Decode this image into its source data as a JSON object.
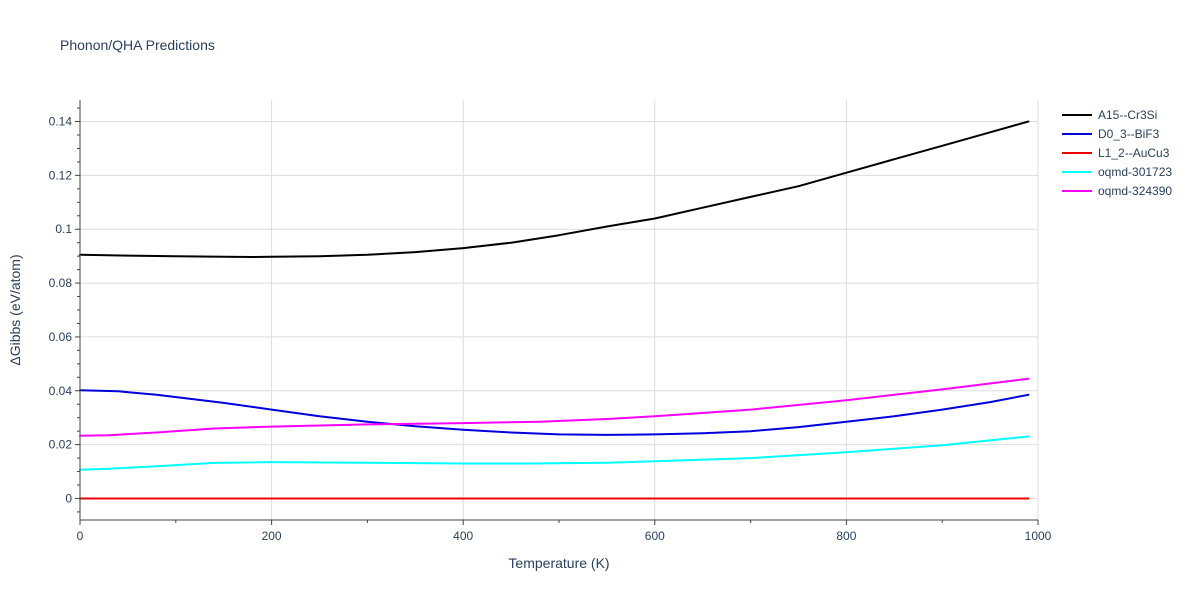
{
  "chart_data": {
    "type": "line",
    "title": "Phonon/QHA Predictions",
    "xlabel": "Temperature (K)",
    "ylabel": "ΔGibbs (eV/atom)",
    "xlim": [
      0,
      1000
    ],
    "ylim": [
      -0.008,
      0.148
    ],
    "xticks": [
      0,
      200,
      400,
      600,
      800,
      1000
    ],
    "xtick_labels": [
      "0",
      "200",
      "400",
      "600",
      "800",
      "1000"
    ],
    "yticks": [
      0,
      0.02,
      0.04,
      0.06,
      0.08,
      0.1,
      0.12,
      0.14
    ],
    "ytick_labels": [
      "0",
      "0.02",
      "0.04",
      "0.06",
      "0.08",
      "0.1",
      "0.12",
      "0.14"
    ],
    "grid": true,
    "legend_position": "top-right, outside plot",
    "series": [
      {
        "name": "A15--Cr3Si",
        "color": "#000000",
        "x": [
          0,
          50,
          100,
          150,
          180,
          200,
          250,
          300,
          350,
          400,
          450,
          500,
          550,
          600,
          650,
          700,
          750,
          800,
          850,
          900,
          950,
          990
        ],
        "y": [
          0.0905,
          0.0902,
          0.09,
          0.0898,
          0.0897,
          0.0898,
          0.09,
          0.0905,
          0.0915,
          0.093,
          0.095,
          0.0978,
          0.101,
          0.104,
          0.108,
          0.112,
          0.116,
          0.121,
          0.126,
          0.131,
          0.136,
          0.14
        ]
      },
      {
        "name": "D0_3--BiF3",
        "color": "#0000dd",
        "x": [
          0,
          40,
          80,
          150,
          200,
          250,
          300,
          350,
          400,
          450,
          500,
          550,
          600,
          650,
          700,
          750,
          800,
          850,
          900,
          950,
          990
        ],
        "y": [
          0.0402,
          0.0398,
          0.0385,
          0.0355,
          0.033,
          0.0305,
          0.0285,
          0.0268,
          0.0255,
          0.0245,
          0.0238,
          0.0236,
          0.0238,
          0.0242,
          0.025,
          0.0265,
          0.0285,
          0.0305,
          0.033,
          0.0358,
          0.0385
        ]
      },
      {
        "name": "L1_2--AuCu3",
        "color": "#ee0000",
        "x": [
          0,
          990
        ],
        "y": [
          0,
          0
        ]
      },
      {
        "name": "oqmd-301723",
        "color": "#00ffff",
        "x": [
          0,
          30,
          80,
          140,
          200,
          300,
          400,
          470,
          550,
          600,
          700,
          800,
          900,
          990
        ],
        "y": [
          0.0107,
          0.011,
          0.012,
          0.0132,
          0.0135,
          0.0133,
          0.013,
          0.013,
          0.0133,
          0.0138,
          0.015,
          0.0172,
          0.0198,
          0.023
        ]
      },
      {
        "name": "oqmd-324390",
        "color": "#ff00ff",
        "x": [
          0,
          30,
          80,
          140,
          200,
          300,
          400,
          480,
          550,
          600,
          700,
          800,
          900,
          990
        ],
        "y": [
          0.0233,
          0.0235,
          0.0245,
          0.026,
          0.0267,
          0.0275,
          0.028,
          0.0285,
          0.0295,
          0.0305,
          0.033,
          0.0365,
          0.0405,
          0.0445
        ]
      }
    ]
  }
}
